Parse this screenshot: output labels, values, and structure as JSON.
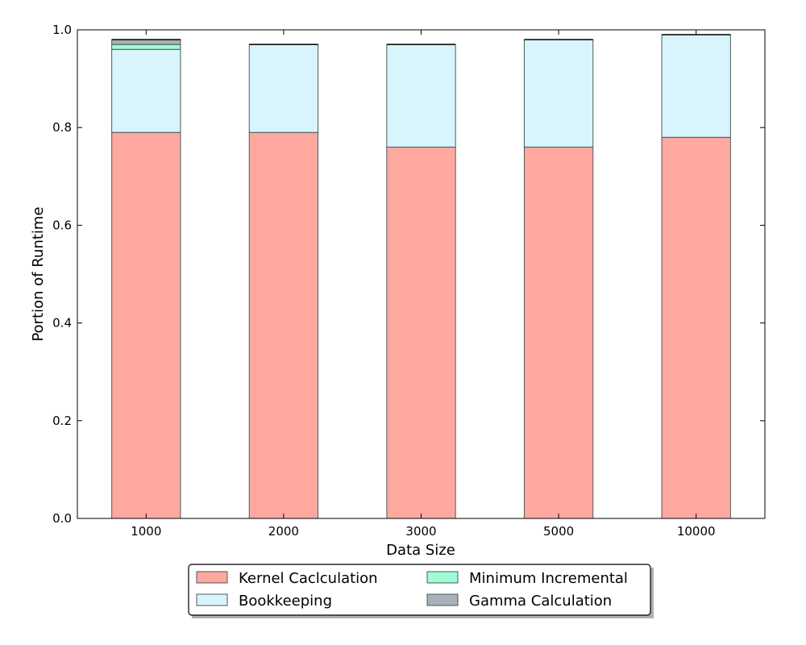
{
  "chart_data": {
    "type": "bar",
    "stacked": true,
    "title": "",
    "xlabel": "Data Size",
    "ylabel": "Portion of Runtime",
    "ylim": [
      0,
      1.0
    ],
    "yticks": [
      "0.0",
      "0.2",
      "0.4",
      "0.6",
      "0.8",
      "1.0"
    ],
    "categories": [
      "1000",
      "2000",
      "3000",
      "5000",
      "10000"
    ],
    "grid": false,
    "legend_position": "bottom-center",
    "series": [
      {
        "name": "Kernel Caclculation",
        "color": "#ffa8a0",
        "values": [
          0.79,
          0.79,
          0.76,
          0.76,
          0.78
        ]
      },
      {
        "name": "Bookkeeping",
        "color": "#d8f4fc",
        "values": [
          0.17,
          0.18,
          0.21,
          0.22,
          0.21
        ]
      },
      {
        "name": "Minimum Incremental",
        "color": "#a0fcd4",
        "values": [
          0.01,
          0.0,
          0.0,
          0.0,
          0.0
        ]
      },
      {
        "name": "Gamma Calculation",
        "color": "#a8b0b8",
        "values": [
          0.01,
          0.0,
          0.0,
          0.0,
          0.0
        ]
      }
    ]
  }
}
